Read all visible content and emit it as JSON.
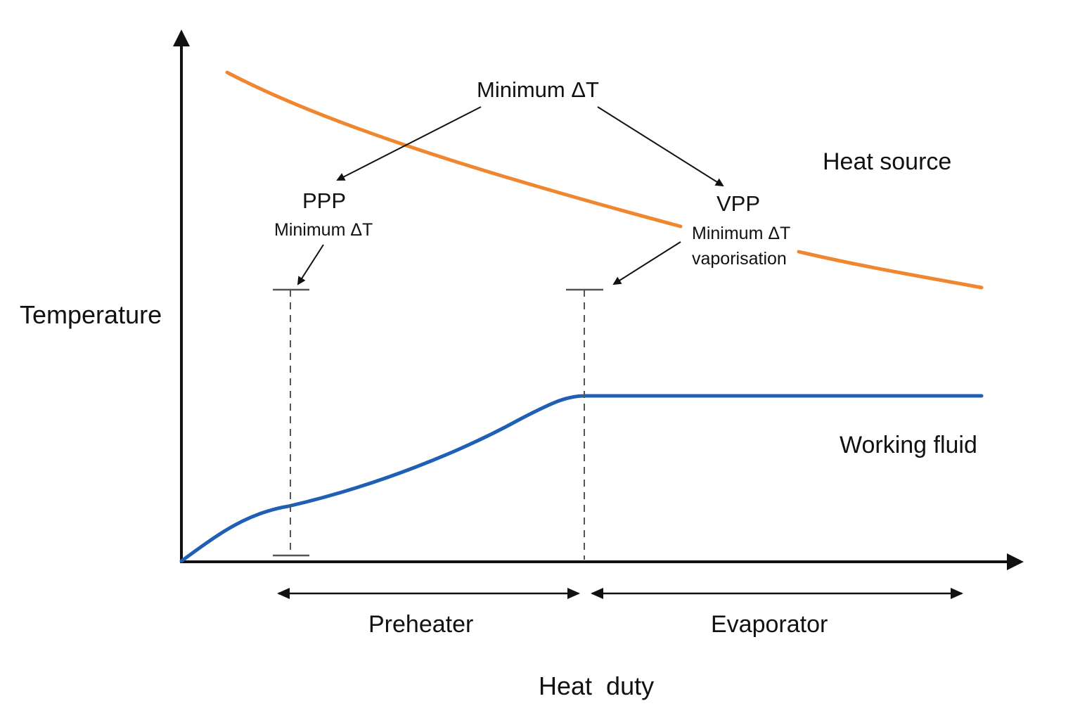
{
  "diagram": {
    "axes": {
      "y_label": "Temperature",
      "x_label": "Heat  duty"
    },
    "curves": {
      "heat_source": {
        "label": "Heat source",
        "color": "#f0862e"
      },
      "working_fluid": {
        "label": "Working fluid",
        "color": "#1f5fb4"
      }
    },
    "annotations": {
      "top": {
        "label": "Minimum ΔT"
      },
      "ppp": {
        "title": "PPP",
        "subtitle": "Minimum ΔT"
      },
      "vpp": {
        "title": "VPP",
        "subtitle_line1": "Minimum ΔT",
        "subtitle_line2": "vaporisation"
      }
    },
    "sections": {
      "preheater": "Preheater",
      "evaporator": "Evaporator"
    },
    "colors": {
      "axis": "#111111",
      "dashed": "#555555",
      "text": "#111111"
    }
  }
}
